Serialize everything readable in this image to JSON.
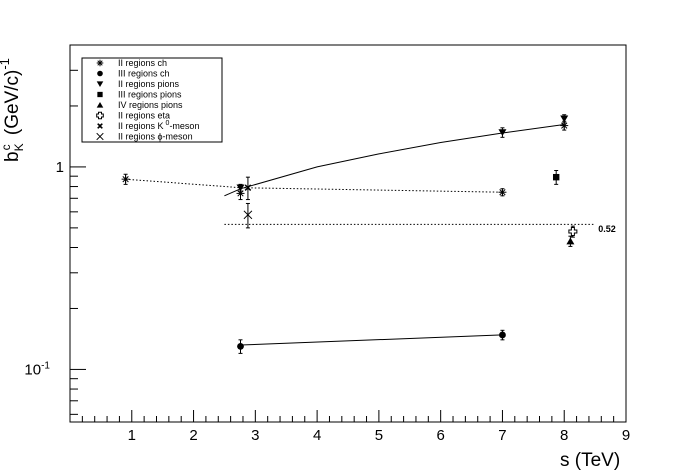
{
  "chart_data": {
    "type": "scatter",
    "title": "",
    "xlabel": "s (TeV)",
    "ylabel": "b_K^c (GeV/c)^-1",
    "ylabel_parts": {
      "base": "b",
      "sup": "c",
      "sub": "K",
      "unit": "(GeV/c)",
      "unit_sup": "-1"
    },
    "xlim": [
      0,
      9
    ],
    "ylim": [
      0.055,
      4.0
    ],
    "y_scale": "log",
    "x_ticks": [
      "1",
      "2",
      "3",
      "4",
      "5",
      "6",
      "7",
      "8",
      "9"
    ],
    "y_tick_labels": [
      {
        "value": 1,
        "base": "1",
        "exp": ""
      },
      {
        "value": 0.1,
        "base": "10",
        "exp": "-1"
      }
    ],
    "grid": false,
    "legend_position": "top-left",
    "series": [
      {
        "name": "II regions ch",
        "marker": "asterisk",
        "points": [
          {
            "x": 0.9,
            "y": 0.87,
            "err": 0.05
          },
          {
            "x": 2.76,
            "y": 0.74,
            "err": 0.05
          },
          {
            "x": 7.0,
            "y": 0.75,
            "err": 0.03
          },
          {
            "x": 8.0,
            "y": 1.6,
            "err": 0.08
          }
        ]
      },
      {
        "name": "III regions ch",
        "marker": "circle",
        "points": [
          {
            "x": 2.76,
            "y": 0.13,
            "err": 0.01
          },
          {
            "x": 7.0,
            "y": 0.148,
            "err": 0.008
          }
        ]
      },
      {
        "name": "II regions pions",
        "marker": "triangle-down",
        "points": [
          {
            "x": 2.76,
            "y": 0.79,
            "err": 0.03
          },
          {
            "x": 7.0,
            "y": 1.48,
            "err": 0.08
          },
          {
            "x": 8.0,
            "y": 1.73,
            "err": 0.08
          }
        ]
      },
      {
        "name": "III regions pions",
        "marker": "square",
        "points": [
          {
            "x": 7.87,
            "y": 0.89,
            "err": 0.07
          }
        ]
      },
      {
        "name": "IV regions pions",
        "marker": "triangle-up",
        "points": [
          {
            "x": 8.1,
            "y": 0.43,
            "err": 0.025
          }
        ]
      },
      {
        "name": "II regions eta",
        "marker": "open-cross",
        "points": [
          {
            "x": 8.14,
            "y": 0.48,
            "err": 0.03
          }
        ]
      },
      {
        "name_parts": [
          "II regions K",
          "0",
          "-meson"
        ],
        "marker": "star",
        "points": [
          {
            "x": 2.88,
            "y": 0.79,
            "err": 0.1
          }
        ]
      },
      {
        "name": "II regions  ϕ-meson",
        "marker": "x",
        "points": [
          {
            "x": 2.88,
            "y": 0.58,
            "err": 0.08
          }
        ]
      }
    ],
    "fit_lines": [
      {
        "style": "dotted",
        "x": [
          0.9,
          2.76,
          7.0
        ],
        "y": [
          0.87,
          0.79,
          0.75
        ]
      },
      {
        "style": "solid",
        "x": [
          2.5,
          2.76,
          4.0,
          5.0,
          6.0,
          7.0,
          8.0
        ],
        "y": [
          0.72,
          0.78,
          1.0,
          1.16,
          1.32,
          1.47,
          1.62
        ]
      },
      {
        "style": "solid",
        "x": [
          2.76,
          7.0
        ],
        "y": [
          0.132,
          0.148
        ]
      },
      {
        "style": "dotted",
        "x": [
          2.5,
          8.5
        ],
        "y": [
          0.52,
          0.52
        ]
      }
    ],
    "annotations": [
      {
        "text": "0.52",
        "x": 8.55,
        "y": 0.5
      }
    ]
  }
}
